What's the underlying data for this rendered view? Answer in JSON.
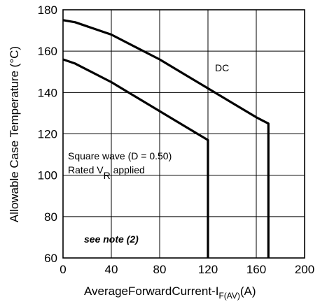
{
  "chart_data": {
    "type": "line",
    "xlabel": "AverageForwardCurrent-I",
    "xlabel_sub": "F(AV)",
    "xlabel_unit": "(A)",
    "ylabel": "Allowable Case Temperature (°C)",
    "xlim": [
      0,
      200
    ],
    "ylim": [
      60,
      180
    ],
    "xticks": [
      0,
      40,
      80,
      120,
      160,
      200
    ],
    "yticks": [
      60,
      80,
      100,
      120,
      140,
      160,
      180
    ],
    "grid": true,
    "series": [
      {
        "name": "DC",
        "x": [
          0,
          10,
          20,
          40,
          60,
          80,
          100,
          120,
          140,
          160,
          170,
          170
        ],
        "y": [
          175,
          174,
          172,
          168,
          162,
          156,
          149,
          142,
          135,
          128,
          125,
          60
        ]
      },
      {
        "x": [
          0,
          10,
          20,
          40,
          60,
          80,
          100,
          120,
          120
        ],
        "y": [
          156,
          154,
          151,
          145,
          138,
          131,
          124,
          117,
          60
        ]
      }
    ],
    "annotations": {
      "square_wave": "Square wave (D = 0.50)",
      "rated_prefix": "Rated V",
      "rated_sub": "R",
      "rated_suffix": " applied",
      "note": "see note (2)"
    }
  }
}
